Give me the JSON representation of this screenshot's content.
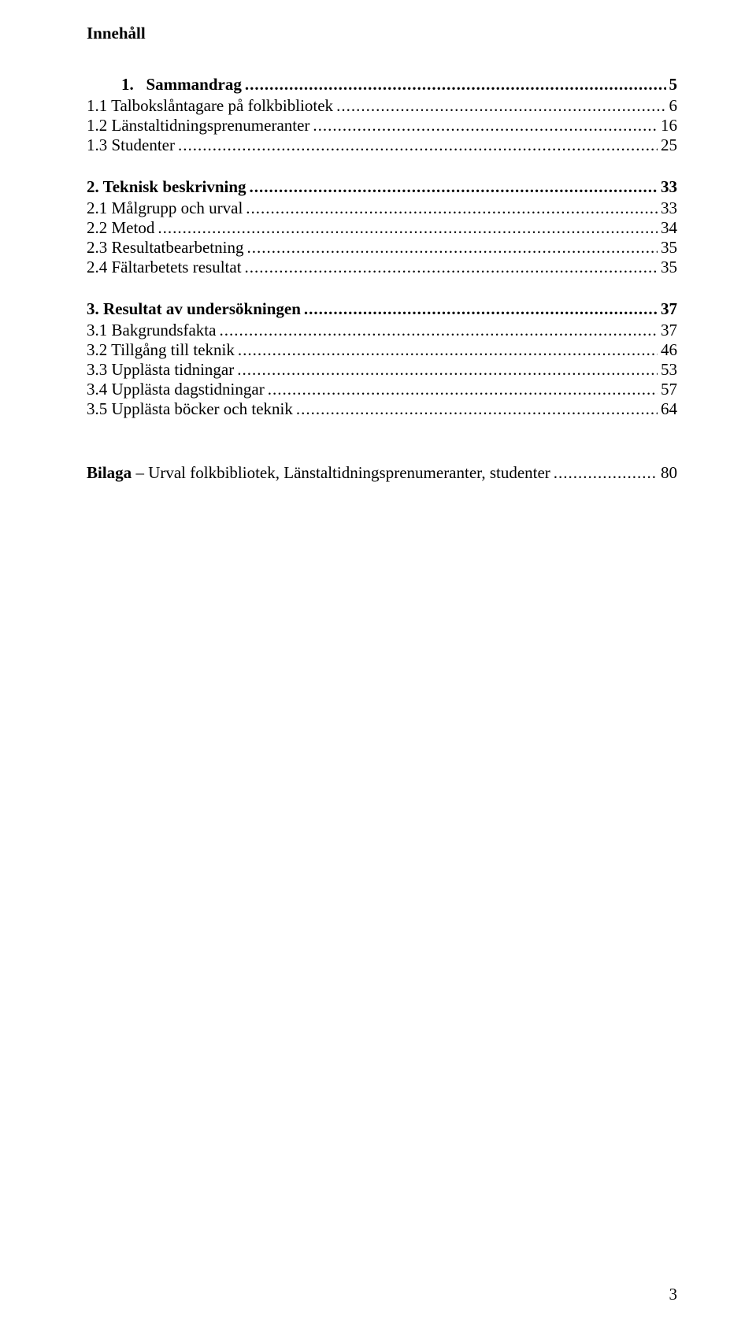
{
  "heading": "Innehåll",
  "sections": [
    {
      "number": "1.",
      "title": "Sammandrag",
      "page": "5",
      "bold": true,
      "subs": [
        {
          "label": "1.1 Talbokslåntagare på folkbibliotek",
          "page": "6"
        },
        {
          "label": "1.2 Länstaltidningsprenumeranter",
          "page": "16"
        },
        {
          "label": "1.3  Studenter",
          "page": "25"
        }
      ]
    },
    {
      "number": "2.",
      "title": "Teknisk beskrivning",
      "page": "33",
      "bold": true,
      "subs": [
        {
          "label": "2.1 Målgrupp och urval",
          "page": "33"
        },
        {
          "label": "2.2 Metod",
          "page": "34"
        },
        {
          "label": "2.3 Resultatbearbetning",
          "page": "35"
        },
        {
          "label": "2.4 Fältarbetets resultat",
          "page": "35"
        }
      ]
    },
    {
      "number": "3.",
      "title": "Resultat av undersökningen",
      "page": "37",
      "bold": true,
      "subs": [
        {
          "label": "3.1 Bakgrundsfakta",
          "page": "37"
        },
        {
          "label": "3.2 Tillgång till teknik",
          "page": "46"
        },
        {
          "label": "3.3 Upplästa tidningar",
          "page": "53"
        },
        {
          "label": "3.4 Upplästa dagstidningar",
          "page": "57"
        },
        {
          "label": "3.5 Upplästa böcker och teknik",
          "page": "64"
        }
      ]
    }
  ],
  "bilaga": {
    "boldPart": "Bilaga",
    "rest": " – Urval folkbibliotek, Länstaltidningsprenumeranter, studenter",
    "page": "80"
  },
  "pageNumber": "3",
  "style": {
    "fontFamily": "Times New Roman",
    "fontSize": 21,
    "textColor": "#000000",
    "backgroundColor": "#ffffff"
  }
}
